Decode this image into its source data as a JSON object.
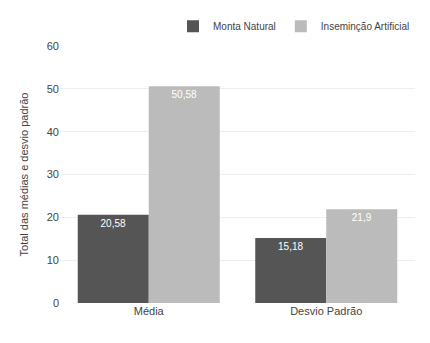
{
  "chart_data": {
    "type": "bar",
    "categories": [
      "Média",
      "Desvio Padrão"
    ],
    "series": [
      {
        "name": "Monta Natural",
        "color": "#555555",
        "values": [
          20.58,
          15.18
        ],
        "value_labels": [
          "20,58",
          "15,18"
        ]
      },
      {
        "name": "Inseminção Artificial",
        "color": "#bbbbbb",
        "values": [
          50.58,
          21.9
        ],
        "value_labels": [
          "50,58",
          "21,9"
        ]
      }
    ],
    "ylabel": "Total das médias e desvio padrão",
    "ylim": [
      0,
      60
    ],
    "yticks": [
      0,
      10,
      20,
      30,
      40,
      50,
      60
    ],
    "grid": true,
    "legend": "upper right",
    "data_labels": true
  }
}
